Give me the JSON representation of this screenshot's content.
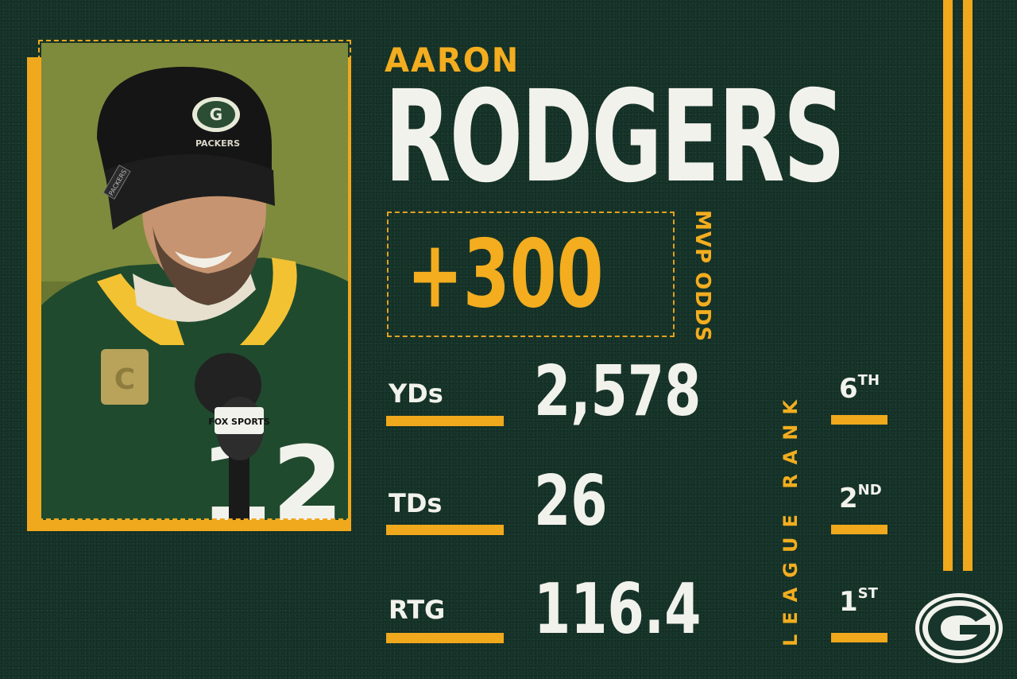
{
  "player": {
    "first_name": "AARON",
    "last_name": "RODGERS"
  },
  "odds": {
    "value": "+300",
    "label": "MVP ODDS"
  },
  "stats": [
    {
      "label": "YDs",
      "value": "2,578",
      "rank_num": "6",
      "rank_suffix": "TH"
    },
    {
      "label": "TDs",
      "value": "26",
      "rank_num": "2",
      "rank_suffix": "ND"
    },
    {
      "label": "RTG",
      "value": "116.4",
      "rank_num": "1",
      "rank_suffix": "ST"
    }
  ],
  "league_rank_label": "LEAGUE RANK",
  "photo": {
    "beanie_text": "PACKERS",
    "beanie_tag": "PACKERS",
    "mic_flag": "FOX SPORTS",
    "jersey_number": "12"
  },
  "colors": {
    "background": "#17352a",
    "gold": "#f0a81c",
    "white": "#f2f2ec",
    "jersey_green": "#1f4a2e"
  },
  "icons": {
    "team_logo": "packers-g-logo"
  }
}
